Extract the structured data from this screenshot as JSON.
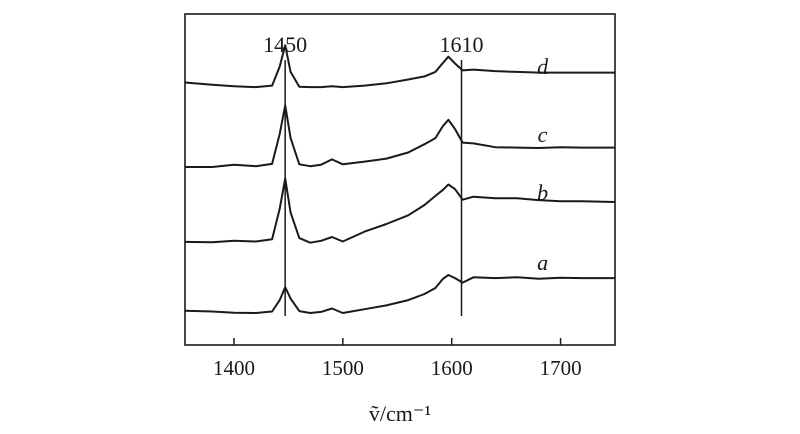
{
  "chart_data": {
    "type": "line",
    "xlabel": "ṽ/cm⁻¹",
    "xlim": [
      1355,
      1750
    ],
    "x_ticks": [
      1400,
      1500,
      1600,
      1700
    ],
    "y_ticks_visible": false,
    "grid": false,
    "reference_lines": [
      {
        "x": 1447,
        "label": "1450"
      },
      {
        "x": 1609,
        "label": "1610"
      }
    ],
    "series": [
      {
        "name": "a",
        "label_x": 1700,
        "x": [
          1355,
          1380,
          1400,
          1420,
          1435,
          1442,
          1447,
          1452,
          1460,
          1470,
          1480,
          1490,
          1500,
          1520,
          1540,
          1560,
          1575,
          1585,
          1592,
          1597,
          1603,
          1610,
          1620,
          1640,
          1660,
          1680,
          1700,
          1720,
          1750
        ],
        "values": [
          0.38,
          0.36,
          0.33,
          0.32,
          0.36,
          0.66,
          1.0,
          0.7,
          0.37,
          0.32,
          0.35,
          0.44,
          0.32,
          0.42,
          0.52,
          0.66,
          0.82,
          0.98,
          1.22,
          1.32,
          1.24,
          1.12,
          1.26,
          1.24,
          1.26,
          1.22,
          1.25,
          1.24,
          1.24
        ]
      },
      {
        "name": "b",
        "label_x": 1700,
        "x": [
          1355,
          1380,
          1400,
          1420,
          1435,
          1442,
          1447,
          1452,
          1460,
          1470,
          1480,
          1490,
          1500,
          1520,
          1540,
          1560,
          1575,
          1585,
          1592,
          1597,
          1603,
          1610,
          1620,
          1640,
          1660,
          1680,
          1700,
          1720,
          1750
        ],
        "values": [
          0.35,
          0.34,
          0.38,
          0.36,
          0.42,
          1.22,
          2.02,
          1.12,
          0.45,
          0.33,
          0.38,
          0.48,
          0.36,
          0.62,
          0.82,
          1.05,
          1.32,
          1.56,
          1.72,
          1.86,
          1.74,
          1.46,
          1.54,
          1.5,
          1.5,
          1.45,
          1.42,
          1.42,
          1.4
        ]
      },
      {
        "name": "c",
        "label_x": 1700,
        "x": [
          1355,
          1380,
          1400,
          1420,
          1435,
          1442,
          1447,
          1452,
          1460,
          1470,
          1480,
          1490,
          1500,
          1520,
          1540,
          1560,
          1575,
          1585,
          1592,
          1597,
          1603,
          1610,
          1620,
          1640,
          1660,
          1680,
          1700,
          1720,
          1750
        ],
        "values": [
          0.48,
          0.48,
          0.54,
          0.5,
          0.56,
          1.35,
          2.1,
          1.24,
          0.55,
          0.5,
          0.54,
          0.68,
          0.55,
          0.62,
          0.7,
          0.86,
          1.08,
          1.24,
          1.56,
          1.72,
          1.48,
          1.12,
          1.1,
          1.0,
          0.99,
          0.98,
          1.0,
          0.99,
          0.99
        ]
      },
      {
        "name": "d",
        "label_x": 1700,
        "x": [
          1355,
          1380,
          1400,
          1420,
          1435,
          1442,
          1447,
          1452,
          1460,
          1470,
          1480,
          1490,
          1500,
          1520,
          1540,
          1560,
          1575,
          1585,
          1592,
          1597,
          1603,
          1610,
          1620,
          1640,
          1660,
          1680,
          1700,
          1720,
          1750
        ],
        "values": [
          0.86,
          0.8,
          0.76,
          0.74,
          0.78,
          1.28,
          1.84,
          1.14,
          0.75,
          0.74,
          0.74,
          0.76,
          0.74,
          0.78,
          0.84,
          0.94,
          1.02,
          1.14,
          1.38,
          1.54,
          1.36,
          1.18,
          1.2,
          1.16,
          1.14,
          1.12,
          1.12,
          1.12,
          1.12
        ]
      }
    ]
  }
}
